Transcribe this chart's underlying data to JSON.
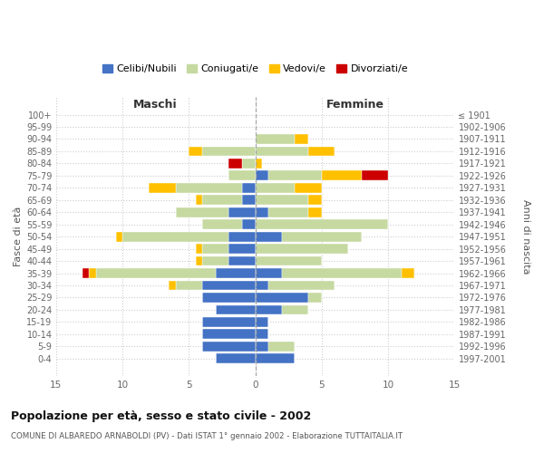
{
  "age_groups": [
    "100+",
    "95-99",
    "90-94",
    "85-89",
    "80-84",
    "75-79",
    "70-74",
    "65-69",
    "60-64",
    "55-59",
    "50-54",
    "45-49",
    "40-44",
    "35-39",
    "30-34",
    "25-29",
    "20-24",
    "15-19",
    "10-14",
    "5-9",
    "0-4"
  ],
  "birth_years": [
    "≤ 1901",
    "1902-1906",
    "1907-1911",
    "1912-1916",
    "1917-1921",
    "1922-1926",
    "1927-1931",
    "1932-1936",
    "1937-1941",
    "1942-1946",
    "1947-1951",
    "1952-1956",
    "1957-1961",
    "1962-1966",
    "1967-1971",
    "1972-1976",
    "1977-1981",
    "1982-1986",
    "1987-1991",
    "1992-1996",
    "1997-2001"
  ],
  "maschi_celibi": [
    0,
    0,
    0,
    0,
    0,
    0,
    1,
    1,
    2,
    1,
    2,
    2,
    2,
    3,
    4,
    4,
    3,
    4,
    4,
    4,
    3
  ],
  "maschi_coniugati": [
    0,
    0,
    0,
    4,
    1,
    2,
    5,
    3,
    4,
    3,
    8,
    2,
    2,
    9,
    2,
    0,
    0,
    0,
    0,
    0,
    0
  ],
  "maschi_vedovi": [
    0,
    0,
    0,
    1,
    0,
    0,
    2,
    0.5,
    0,
    0,
    0.5,
    0.5,
    0.5,
    0.5,
    0.5,
    0,
    0,
    0,
    0,
    0,
    0
  ],
  "maschi_divorziati": [
    0,
    0,
    0,
    0,
    1,
    0,
    0,
    0,
    0,
    0,
    0,
    0,
    0,
    0.5,
    0,
    0,
    0,
    0,
    0,
    0,
    0
  ],
  "femmine_celibi": [
    0,
    0,
    0,
    0,
    0,
    1,
    0,
    0,
    1,
    0,
    2,
    0,
    0,
    2,
    1,
    4,
    2,
    1,
    1,
    1,
    3
  ],
  "femmine_coniugati": [
    0,
    0,
    3,
    4,
    0,
    4,
    3,
    4,
    3,
    10,
    6,
    7,
    5,
    9,
    5,
    1,
    2,
    0,
    0,
    2,
    0
  ],
  "femmine_vedovi": [
    0,
    0,
    1,
    2,
    0.5,
    3,
    2,
    1,
    1,
    0,
    0,
    0,
    0,
    1,
    0,
    0,
    0,
    0,
    0,
    0,
    0
  ],
  "femmine_divorziati": [
    0,
    0,
    0,
    0,
    0,
    2,
    0,
    0,
    0,
    0,
    0,
    0,
    0,
    0,
    0,
    0,
    0,
    0,
    0,
    0,
    0
  ],
  "color_celibi": "#4472c4",
  "color_coniugati": "#c5d9a0",
  "color_vedovi": "#ffc000",
  "color_divorziati": "#cc0000",
  "xlim": 15,
  "title": "Popolazione per età, sesso e stato civile - 2002",
  "subtitle": "COMUNE DI ALBAREDO ARNABOLDI (PV) - Dati ISTAT 1° gennaio 2002 - Elaborazione TUTTAITALIA.IT",
  "ylabel_left": "Fasce di età",
  "ylabel_right": "Anni di nascita",
  "xlabel_maschi": "Maschi",
  "xlabel_femmine": "Femmine"
}
